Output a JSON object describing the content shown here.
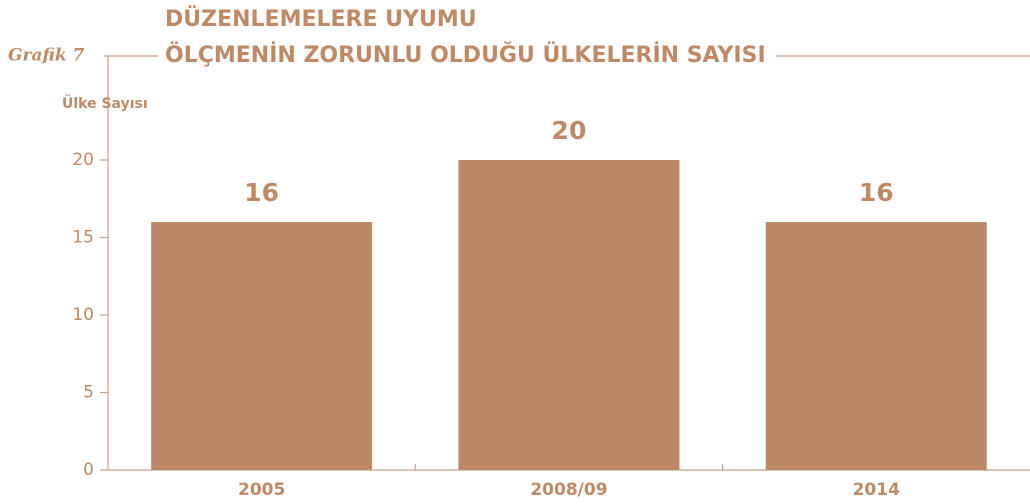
{
  "chart_data": {
    "type": "bar",
    "figure_label": "Grafik 7",
    "title": [
      "DÜZENLEMELERE UYUMU",
      "ÖLÇMENİN ZORUNLU OLDUĞU ÜLKELERİN SAYISI"
    ],
    "y_label": "Ülke Sayısı",
    "categories": [
      "2005",
      "2008/09",
      "2014"
    ],
    "values": [
      16,
      20,
      16
    ],
    "color": "#bd8868",
    "ylim": [
      0,
      20
    ],
    "yticks": [
      0,
      5,
      10,
      15,
      20
    ],
    "grid": false
  }
}
